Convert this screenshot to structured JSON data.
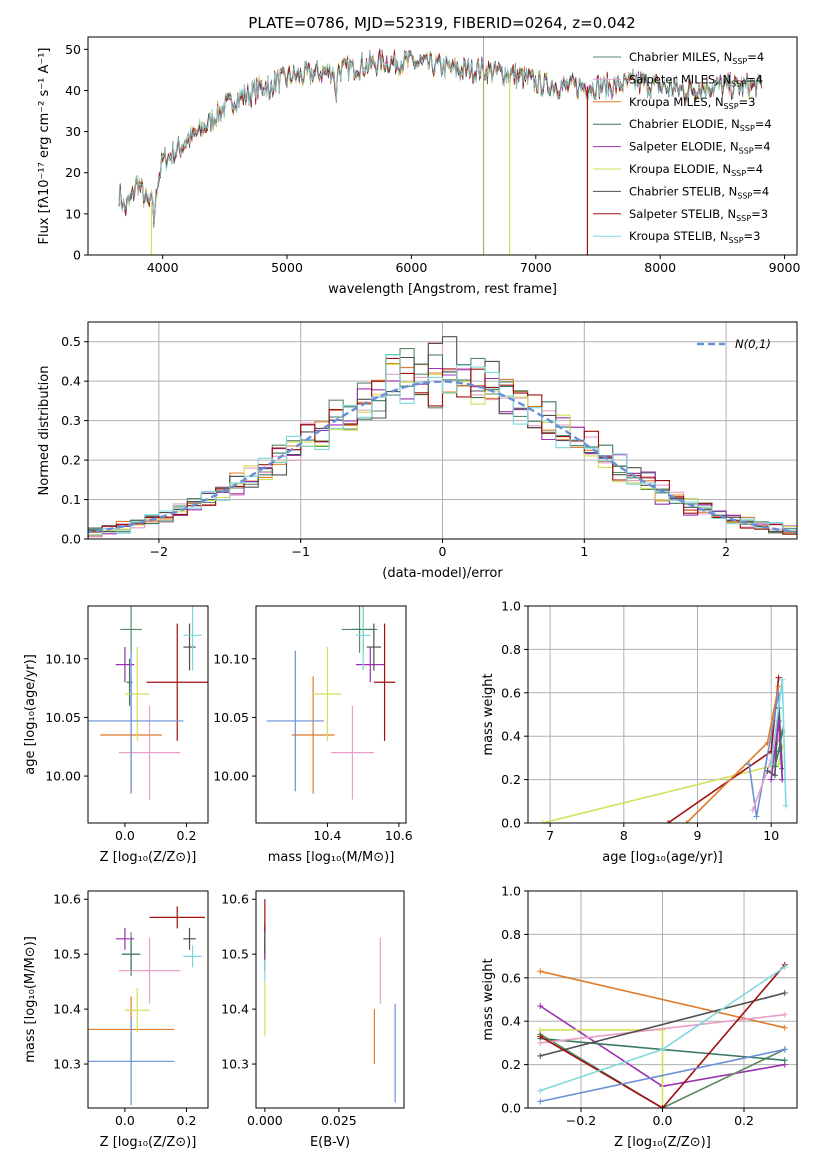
{
  "figure": {
    "title": "PLATE=0786, MJD=52319, FIBERID=0264, z=0.042"
  },
  "chart_data": [
    {
      "id": "spectrum",
      "type": "line",
      "xlabel": "wavelength [Angstrom, rest frame]",
      "ylabel": "Flux [fλ10⁻¹⁷ erg cm⁻² s⁻¹ A⁻¹]",
      "xlim": [
        3400,
        9100
      ],
      "ylim": [
        0,
        53
      ],
      "xticks": [
        4000,
        5000,
        6000,
        7000,
        8000,
        9000
      ],
      "yticks": [
        0,
        10,
        20,
        30,
        40,
        50
      ],
      "grid": false,
      "legend_position": "right",
      "series": [
        {
          "name": "Chabrier MILES, N",
          "sub": "SSP",
          "suffix": "=4",
          "color": "#5b8a6b"
        },
        {
          "name": "Salpeter MILES, N",
          "sub": "SSP",
          "suffix": "=4",
          "color": "#e6a0c8"
        },
        {
          "name": "Kroupa MILES, N",
          "sub": "SSP",
          "suffix": "=3",
          "color": "#e07b2a"
        },
        {
          "name": "Chabrier ELODIE, N",
          "sub": "SSP",
          "suffix": "=4",
          "color": "#3a7a60"
        },
        {
          "name": "Salpeter ELODIE, N",
          "sub": "SSP",
          "suffix": "=4",
          "color": "#9b30b0"
        },
        {
          "name": "Kroupa ELODIE, N",
          "sub": "SSP",
          "suffix": "=4",
          "color": "#d4e05a"
        },
        {
          "name": "Chabrier STELIB, N",
          "sub": "SSP",
          "suffix": "=4",
          "color": "#505050"
        },
        {
          "name": "Salpeter STELIB, N",
          "sub": "SSP",
          "suffix": "=3",
          "color": "#a01010"
        },
        {
          "name": "Kroupa STELIB, N",
          "sub": "SSP",
          "suffix": "=3",
          "color": "#7fd8dc"
        }
      ],
      "continuum": {
        "x": [
          3650,
          3700,
          3750,
          3800,
          3850,
          3900,
          3950,
          4000,
          4100,
          4200,
          4300,
          4400,
          4500,
          4600,
          4700,
          4800,
          5000,
          5200,
          5400,
          5600,
          5800,
          6000,
          6200,
          6400,
          6600,
          6800,
          7000,
          7200,
          7400,
          7600,
          7800,
          8000,
          8200,
          8400,
          8600,
          8800
        ],
        "y": [
          15,
          11,
          14,
          18,
          14,
          12,
          16,
          23,
          25,
          28,
          30,
          33,
          36,
          38,
          39,
          41,
          43,
          44,
          45,
          46,
          47,
          47,
          46,
          45,
          45,
          44,
          42,
          41,
          41,
          41,
          42,
          41,
          40,
          41,
          41,
          41
        ]
      }
    },
    {
      "id": "residuals",
      "type": "histogram",
      "xlabel": "(data-model)/error",
      "ylabel": "Normed distribution",
      "xlim": [
        -2.5,
        2.5
      ],
      "ylim": [
        0,
        0.55
      ],
      "xticks": [
        -2,
        -1,
        0,
        1,
        2
      ],
      "yticks": [
        0.0,
        0.1,
        0.2,
        0.3,
        0.4,
        0.5
      ],
      "grid": true,
      "bin_edges_start": -2.5,
      "bin_width": 0.1,
      "series_colors": [
        "#5b8a6b",
        "#e6a0c8",
        "#e07b2a",
        "#3a7a60",
        "#9b30b0",
        "#d4e05a",
        "#505050",
        "#a01010",
        "#7fd8dc"
      ],
      "reference": {
        "name": "N(0,1)",
        "color": "#6a8fd8"
      }
    },
    {
      "id": "age-vs-Z",
      "type": "errorbar",
      "xlabel": "Z [log₁₀(Z/Z⊙)]",
      "ylabel": "age  [log₁₀(age/yr)]",
      "xlim": [
        -0.12,
        0.27
      ],
      "ylim": [
        9.96,
        10.145
      ],
      "xticks": [
        0.0,
        0.2
      ],
      "yticks": [
        10.0,
        10.05,
        10.1
      ],
      "points": [
        {
          "x": 0.02,
          "y": 10.125,
          "ex": 0.035,
          "ey": 0.02,
          "color": "#5b8a6b"
        },
        {
          "x": 0.08,
          "y": 10.02,
          "ex": 0.1,
          "ey": 0.04,
          "color": "#e6a0c8"
        },
        {
          "x": 0.02,
          "y": 10.035,
          "ex": 0.1,
          "ey": 0.05,
          "color": "#e07b2a"
        },
        {
          "x": 0.015,
          "y": 10.08,
          "ex": 0.01,
          "ey": 0.02,
          "color": "#3a7a60"
        },
        {
          "x": 0.0,
          "y": 10.095,
          "ex": 0.03,
          "ey": 0.015,
          "color": "#9b30b0"
        },
        {
          "x": 0.04,
          "y": 10.07,
          "ex": 0.04,
          "ey": 0.04,
          "color": "#d4e05a"
        },
        {
          "x": 0.21,
          "y": 10.11,
          "ex": 0.02,
          "ey": 0.02,
          "color": "#505050"
        },
        {
          "x": 0.17,
          "y": 10.08,
          "ex": 0.1,
          "ey": 0.05,
          "color": "#a01010"
        },
        {
          "x": 0.22,
          "y": 10.12,
          "ex": 0.03,
          "ey": 0.03,
          "color": "#7fd8dc"
        },
        {
          "x": 0.02,
          "y": 10.047,
          "ex": 0.17,
          "ey": 0.06,
          "color": "#6a8fd8"
        }
      ]
    },
    {
      "id": "age-vs-mass",
      "type": "errorbar",
      "xlabel": "mass [log₁₀(M/M⊙)]",
      "ylabel": "",
      "xlim": [
        10.2,
        10.62
      ],
      "ylim": [
        9.96,
        10.145
      ],
      "xticks": [
        10.4,
        10.6
      ],
      "yticks": [
        10.0,
        10.05,
        10.1
      ],
      "points": [
        {
          "x": 10.49,
          "y": 10.125,
          "ex": 0.05,
          "ey": 0.02,
          "color": "#5b8a6b"
        },
        {
          "x": 10.47,
          "y": 10.02,
          "ex": 0.06,
          "ey": 0.04,
          "color": "#e6a0c8"
        },
        {
          "x": 10.36,
          "y": 10.035,
          "ex": 0.06,
          "ey": 0.05,
          "color": "#e07b2a"
        },
        {
          "x": 10.5,
          "y": 10.125,
          "ex": 0.03,
          "ey": 0.02,
          "color": "#3a7a60"
        },
        {
          "x": 10.52,
          "y": 10.095,
          "ex": 0.04,
          "ey": 0.015,
          "color": "#9b30b0"
        },
        {
          "x": 10.4,
          "y": 10.07,
          "ex": 0.04,
          "ey": 0.04,
          "color": "#d4e05a"
        },
        {
          "x": 10.53,
          "y": 10.11,
          "ex": 0.02,
          "ey": 0.02,
          "color": "#505050"
        },
        {
          "x": 10.56,
          "y": 10.08,
          "ex": 0.03,
          "ey": 0.05,
          "color": "#a01010"
        },
        {
          "x": 10.5,
          "y": 10.12,
          "ex": 0.02,
          "ey": 0.03,
          "color": "#7fd8dc"
        },
        {
          "x": 10.31,
          "y": 10.047,
          "ex": 0.08,
          "ey": 0.06,
          "color": "#6a8fd8"
        }
      ]
    },
    {
      "id": "weight-vs-age",
      "type": "line",
      "xlabel": "age  [log₁₀(age/yr)]",
      "ylabel": "mass weight",
      "xlim": [
        6.7,
        10.35
      ],
      "ylim": [
        0,
        1
      ],
      "xticks": [
        7,
        8,
        9,
        10
      ],
      "yticks": [
        0.0,
        0.2,
        0.4,
        0.6,
        0.8,
        1.0
      ],
      "grid": true,
      "series": [
        {
          "color": "#d4e05a",
          "x": [
            6.9,
            10.1,
            10.15
          ],
          "y": [
            0.0,
            0.27,
            0.35
          ]
        },
        {
          "color": "#a01010",
          "x": [
            8.6,
            10.0,
            10.1
          ],
          "y": [
            0.0,
            0.33,
            0.67
          ]
        },
        {
          "color": "#e07b2a",
          "x": [
            8.85,
            9.95,
            10.1
          ],
          "y": [
            0.0,
            0.37,
            0.63
          ]
        },
        {
          "color": "#6a8fd8",
          "x": [
            9.7,
            9.8,
            10.1,
            10.15
          ],
          "y": [
            0.27,
            0.03,
            0.6,
            0.2
          ]
        },
        {
          "color": "#e6a0c8",
          "x": [
            9.75,
            10.0,
            10.15
          ],
          "y": [
            0.06,
            0.29,
            0.43
          ]
        },
        {
          "color": "#505050",
          "x": [
            9.95,
            10.05,
            10.1,
            10.15
          ],
          "y": [
            0.24,
            0.22,
            0.53,
            0.25
          ]
        },
        {
          "color": "#9b30b0",
          "x": [
            10.0,
            10.1,
            10.15
          ],
          "y": [
            0.2,
            0.47,
            0.2
          ]
        },
        {
          "color": "#3a7a60",
          "x": [
            10.05,
            10.1,
            10.15
          ],
          "y": [
            0.26,
            0.33,
            0.42
          ]
        },
        {
          "color": "#7fd8dc",
          "x": [
            10.0,
            10.15,
            10.2
          ],
          "y": [
            0.27,
            0.66,
            0.08
          ]
        }
      ]
    },
    {
      "id": "mass-vs-Z",
      "type": "errorbar",
      "xlabel": "Z [log₁₀(Z/Z⊙)]",
      "ylabel": "mass [log₁₀(M/M⊙)]",
      "xlim": [
        -0.12,
        0.27
      ],
      "ylim": [
        10.22,
        10.615
      ],
      "xticks": [
        0.0,
        0.2
      ],
      "yticks": [
        10.3,
        10.4,
        10.5,
        10.6
      ],
      "points": [
        {
          "x": 0.02,
          "y": 10.5,
          "ex": 0.03,
          "ey": 0.04,
          "color": "#5b8a6b"
        },
        {
          "x": 0.08,
          "y": 10.47,
          "ex": 0.1,
          "ey": 0.06,
          "color": "#e6a0c8"
        },
        {
          "x": 0.02,
          "y": 10.363,
          "ex": 0.14,
          "ey": 0.06,
          "color": "#e07b2a"
        },
        {
          "x": 0.02,
          "y": 10.5,
          "ex": 0.03,
          "ey": 0.03,
          "color": "#3a7a60"
        },
        {
          "x": 0.0,
          "y": 10.528,
          "ex": 0.03,
          "ey": 0.02,
          "color": "#9b30b0"
        },
        {
          "x": 0.04,
          "y": 10.398,
          "ex": 0.04,
          "ey": 0.04,
          "color": "#d4e05a"
        },
        {
          "x": 0.21,
          "y": 10.528,
          "ex": 0.02,
          "ey": 0.02,
          "color": "#505050"
        },
        {
          "x": 0.17,
          "y": 10.567,
          "ex": 0.09,
          "ey": 0.02,
          "color": "#a01010"
        },
        {
          "x": 0.22,
          "y": 10.496,
          "ex": 0.03,
          "ey": 0.02,
          "color": "#7fd8dc"
        },
        {
          "x": 0.02,
          "y": 10.305,
          "ex": 0.14,
          "ey": 0.08,
          "color": "#6a8fd8"
        }
      ]
    },
    {
      "id": "mass-vs-EBV",
      "type": "errorbar",
      "xlabel": "E(B-V)",
      "ylabel": "",
      "xlim": [
        -0.003,
        0.047
      ],
      "ylim": [
        10.22,
        10.615
      ],
      "xticks": [
        0.0,
        0.025
      ],
      "yticks": [
        10.3,
        10.4,
        10.5,
        10.6
      ],
      "points": [
        {
          "x": 0.0,
          "y": 10.5,
          "ex": 0.0,
          "ey": 0.03,
          "color": "#5b8a6b"
        },
        {
          "x": 0.039,
          "y": 10.47,
          "ex": 0.0,
          "ey": 0.06,
          "color": "#e6a0c8"
        },
        {
          "x": 0.037,
          "y": 10.35,
          "ex": 0.0,
          "ey": 0.05,
          "color": "#e07b2a"
        },
        {
          "x": 0.0,
          "y": 10.5,
          "ex": 0.0,
          "ey": 0.03,
          "color": "#3a7a60"
        },
        {
          "x": 0.0,
          "y": 10.52,
          "ex": 0.0,
          "ey": 0.03,
          "color": "#9b30b0"
        },
        {
          "x": 0.0,
          "y": 10.4,
          "ex": 0.0,
          "ey": 0.05,
          "color": "#d4e05a"
        },
        {
          "x": 0.0,
          "y": 10.53,
          "ex": 0.0,
          "ey": 0.03,
          "color": "#505050"
        },
        {
          "x": 0.0,
          "y": 10.57,
          "ex": 0.0,
          "ey": 0.03,
          "color": "#a01010"
        },
        {
          "x": 0.0,
          "y": 10.47,
          "ex": 0.0,
          "ey": 0.02,
          "color": "#7fd8dc"
        },
        {
          "x": 0.044,
          "y": 10.32,
          "ex": 0.0,
          "ey": 0.09,
          "color": "#6a8fd8"
        }
      ]
    },
    {
      "id": "weight-vs-Z",
      "type": "line",
      "xlabel": "Z [log₁₀(Z/Z⊙)]",
      "ylabel": "mass weight",
      "xlim": [
        -0.33,
        0.33
      ],
      "ylim": [
        0,
        1
      ],
      "xticks": [
        -0.2,
        0.0,
        0.2
      ],
      "yticks": [
        0.0,
        0.2,
        0.4,
        0.6,
        0.8,
        1.0
      ],
      "grid": true,
      "series": [
        {
          "color": "#e07b2a",
          "x": [
            -0.3,
            0.3
          ],
          "y": [
            0.63,
            0.37
          ]
        },
        {
          "color": "#9b30b0",
          "x": [
            -0.3,
            0.0,
            0.3
          ],
          "y": [
            0.47,
            0.1,
            0.2
          ]
        },
        {
          "color": "#d4e05a",
          "x": [
            -0.3,
            0.0,
            0.0,
            0.3
          ],
          "y": [
            0.36,
            0.36,
            0.0,
            0.27
          ]
        },
        {
          "color": "#5b8a6b",
          "x": [
            -0.3,
            0.0,
            0.3
          ],
          "y": [
            0.34,
            0.0,
            0.27
          ]
        },
        {
          "color": "#3a7a60",
          "x": [
            -0.3,
            0.3
          ],
          "y": [
            0.32,
            0.22
          ]
        },
        {
          "color": "#e6a0c8",
          "x": [
            -0.3,
            0.3
          ],
          "y": [
            0.3,
            0.43
          ]
        },
        {
          "color": "#505050",
          "x": [
            -0.3,
            0.3
          ],
          "y": [
            0.24,
            0.53
          ]
        },
        {
          "color": "#a01010",
          "x": [
            -0.3,
            0.0,
            0.3
          ],
          "y": [
            0.33,
            0.0,
            0.66
          ]
        },
        {
          "color": "#7fd8dc",
          "x": [
            -0.3,
            0.0,
            0.3
          ],
          "y": [
            0.08,
            0.27,
            0.65
          ]
        },
        {
          "color": "#6a8fd8",
          "x": [
            -0.3,
            0.3
          ],
          "y": [
            0.03,
            0.27
          ]
        }
      ]
    }
  ]
}
